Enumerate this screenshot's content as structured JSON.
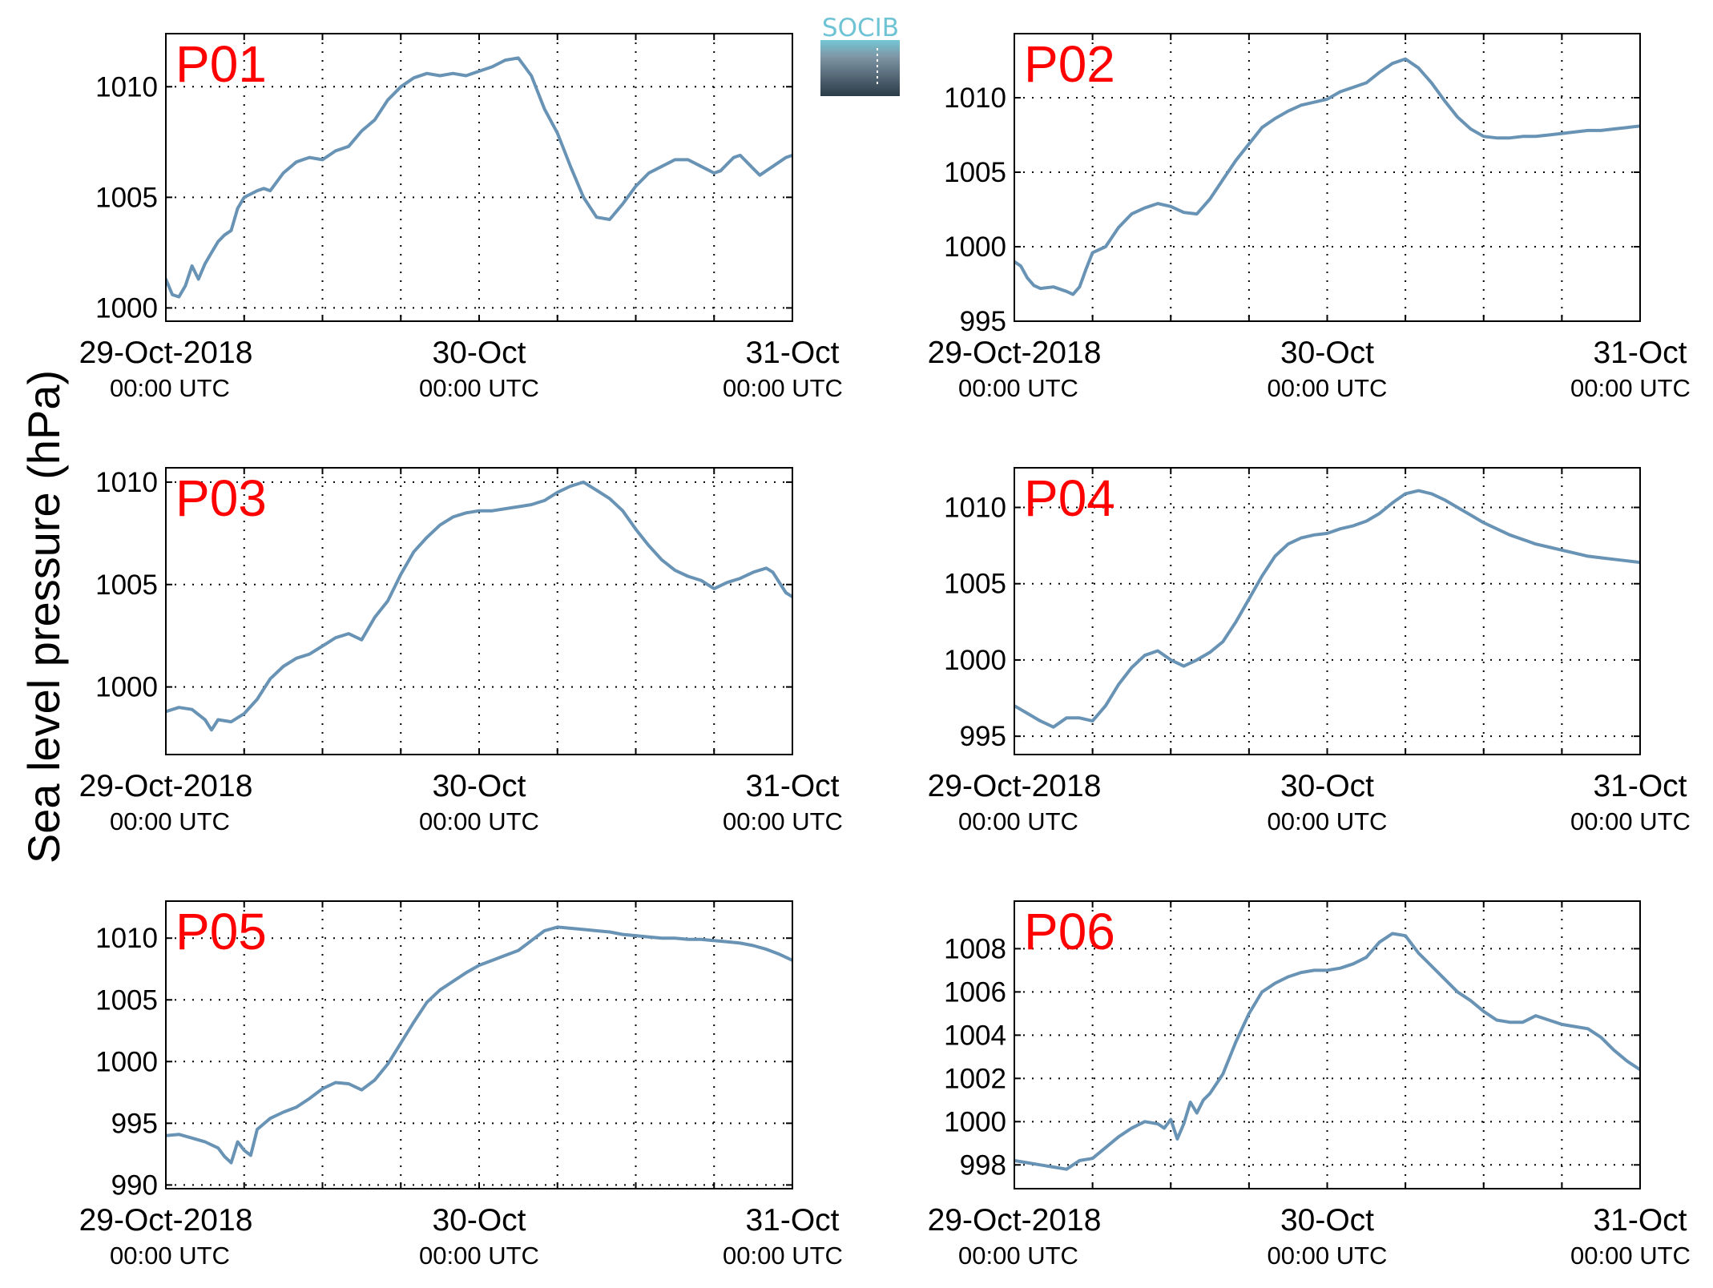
{
  "figure": {
    "ylabel": "Sea level pressure (hPa)",
    "logo_text": "SOCIB",
    "colors": {
      "line": "#6893b5",
      "panel_title": "#ff0000",
      "logo_text": "#6ec3d4",
      "logo_top": "#74c7d6",
      "logo_bottom": "#2b3b48"
    }
  },
  "chart_data": [
    {
      "type": "line",
      "title": "P01",
      "x_ticks": [
        {
          "date": "29-Oct-2018",
          "time": "00:00 UTC"
        },
        {
          "date": "30-Oct",
          "time": "00:00 UTC"
        },
        {
          "date": "31-Oct",
          "time": "00:00 UTC"
        }
      ],
      "x_grid_hours": [
        12,
        24,
        36,
        60,
        72,
        84
      ],
      "xlim_hours": [
        0,
        96
      ],
      "yticks": [
        1000,
        1005,
        1010
      ],
      "ylim": [
        999.4,
        1012.4
      ],
      "grid": true,
      "series": [
        {
          "x_hours": [
            0,
            1,
            2,
            3,
            4,
            5,
            6,
            7,
            8,
            9,
            10,
            11,
            12,
            14,
            15,
            16,
            18,
            20,
            22,
            24,
            26,
            28,
            30,
            32,
            34,
            36,
            38,
            40,
            42,
            44,
            46,
            48,
            50,
            52,
            54,
            56,
            58,
            60,
            62,
            64,
            66,
            68,
            70,
            72,
            74,
            76,
            78,
            80,
            82,
            84,
            85,
            86,
            87,
            88,
            89,
            90,
            91,
            92,
            93,
            94,
            95,
            96
          ],
          "values": [
            1001.3,
            1000.6,
            1000.5,
            1001.0,
            1001.9,
            1001.3,
            1002.0,
            1002.5,
            1003.0,
            1003.3,
            1003.5,
            1004.5,
            1005.0,
            1005.3,
            1005.4,
            1005.3,
            1006.1,
            1006.6,
            1006.8,
            1006.7,
            1007.1,
            1007.3,
            1008.0,
            1008.5,
            1009.4,
            1010.0,
            1010.4,
            1010.6,
            1010.5,
            1010.6,
            1010.5,
            1010.7,
            1010.9,
            1011.2,
            1011.3,
            1010.5,
            1009.0,
            1007.9,
            1006.4,
            1005.0,
            1004.1,
            1004.0,
            1004.7,
            1005.5,
            1006.1,
            1006.4,
            1006.7,
            1006.7,
            1006.4,
            1006.1,
            1006.2,
            1006.5,
            1006.8,
            1006.9,
            1006.6,
            1006.3,
            1006.0,
            1006.2,
            1006.4,
            1006.6,
            1006.8,
            1006.9
          ]
        }
      ]
    },
    {
      "type": "line",
      "title": "P02",
      "x_ticks": [
        {
          "date": "29-Oct-2018",
          "time": "00:00 UTC"
        },
        {
          "date": "30-Oct",
          "time": "00:00 UTC"
        },
        {
          "date": "31-Oct",
          "time": "00:00 UTC"
        }
      ],
      "x_grid_hours": [
        12,
        24,
        36,
        60,
        72,
        84
      ],
      "xlim_hours": [
        0,
        96
      ],
      "yticks": [
        995,
        1000,
        1005,
        1010
      ],
      "ylim": [
        995,
        1014.3
      ],
      "grid": true,
      "series": [
        {
          "x_hours": [
            0,
            1,
            2,
            3,
            4,
            6,
            8,
            9,
            10,
            11,
            12,
            14,
            16,
            18,
            20,
            22,
            24,
            26,
            28,
            30,
            32,
            34,
            36,
            38,
            40,
            42,
            44,
            46,
            48,
            50,
            52,
            54,
            56,
            58,
            60,
            62,
            64,
            66,
            68,
            70,
            72,
            74,
            76,
            78,
            80,
            82,
            84,
            86,
            88,
            90,
            92,
            94,
            96
          ],
          "values": [
            999.0,
            998.7,
            997.9,
            997.4,
            997.2,
            997.3,
            997.0,
            996.8,
            997.3,
            998.5,
            999.6,
            1000.0,
            1001.3,
            1002.2,
            1002.6,
            1002.9,
            1002.7,
            1002.3,
            1002.2,
            1003.2,
            1004.5,
            1005.8,
            1006.9,
            1008.0,
            1008.6,
            1009.1,
            1009.5,
            1009.7,
            1009.9,
            1010.4,
            1010.7,
            1011.0,
            1011.7,
            1012.3,
            1012.6,
            1012.0,
            1011.0,
            1009.8,
            1008.7,
            1007.9,
            1007.4,
            1007.3,
            1007.3,
            1007.4,
            1007.4,
            1007.5,
            1007.6,
            1007.7,
            1007.8,
            1007.8,
            1007.9,
            1008.0,
            1008.1
          ]
        }
      ]
    },
    {
      "type": "line",
      "title": "P03",
      "x_ticks": [
        {
          "date": "29-Oct-2018",
          "time": "00:00 UTC"
        },
        {
          "date": "30-Oct",
          "time": "00:00 UTC"
        },
        {
          "date": "31-Oct",
          "time": "00:00 UTC"
        }
      ],
      "x_grid_hours": [
        12,
        24,
        36,
        60,
        72,
        84
      ],
      "xlim_hours": [
        0,
        96
      ],
      "yticks": [
        1000,
        1005,
        1010
      ],
      "ylim": [
        996.7,
        1010.7
      ],
      "grid": true,
      "series": [
        {
          "x_hours": [
            0,
            2,
            4,
            6,
            7,
            8,
            10,
            12,
            14,
            16,
            18,
            20,
            22,
            24,
            25,
            26,
            28,
            30,
            32,
            34,
            36,
            38,
            40,
            42,
            44,
            46,
            48,
            50,
            52,
            54,
            56,
            58,
            60,
            62,
            64,
            66,
            68,
            70,
            72,
            74,
            76,
            78,
            80,
            82,
            84,
            86,
            88,
            90,
            92,
            93,
            94,
            95,
            96
          ],
          "values": [
            998.8,
            999.0,
            998.9,
            998.4,
            997.9,
            998.4,
            998.3,
            998.7,
            999.4,
            1000.4,
            1001.0,
            1001.4,
            1001.6,
            1002.0,
            1002.2,
            1002.4,
            1002.6,
            1002.3,
            1003.4,
            1004.2,
            1005.5,
            1006.6,
            1007.3,
            1007.9,
            1008.3,
            1008.5,
            1008.6,
            1008.6,
            1008.7,
            1008.8,
            1008.9,
            1009.1,
            1009.5,
            1009.8,
            1010.0,
            1009.6,
            1009.2,
            1008.6,
            1007.7,
            1006.9,
            1006.2,
            1005.7,
            1005.4,
            1005.2,
            1004.8,
            1005.1,
            1005.3,
            1005.6,
            1005.8,
            1005.6,
            1005.1,
            1004.6,
            1004.4
          ]
        }
      ]
    },
    {
      "type": "line",
      "title": "P04",
      "x_ticks": [
        {
          "date": "29-Oct-2018",
          "time": "00:00 UTC"
        },
        {
          "date": "30-Oct",
          "time": "00:00 UTC"
        },
        {
          "date": "31-Oct",
          "time": "00:00 UTC"
        }
      ],
      "x_grid_hours": [
        12,
        24,
        36,
        60,
        72,
        84
      ],
      "xlim_hours": [
        0,
        96
      ],
      "yticks": [
        995,
        1000,
        1005,
        1010
      ],
      "ylim": [
        993.8,
        1012.6
      ],
      "grid": true,
      "series": [
        {
          "x_hours": [
            0,
            2,
            4,
            6,
            8,
            10,
            12,
            14,
            16,
            18,
            20,
            22,
            24,
            26,
            28,
            30,
            32,
            34,
            36,
            38,
            40,
            42,
            44,
            46,
            48,
            50,
            52,
            54,
            56,
            58,
            60,
            62,
            64,
            66,
            68,
            70,
            72,
            74,
            76,
            78,
            80,
            82,
            84,
            86,
            88,
            90,
            92,
            94,
            96
          ],
          "values": [
            997.0,
            996.5,
            996.0,
            995.6,
            996.2,
            996.2,
            996.0,
            997.0,
            998.4,
            999.5,
            1000.3,
            1000.6,
            1000.0,
            999.6,
            1000.0,
            1000.5,
            1001.2,
            1002.5,
            1004.0,
            1005.5,
            1006.8,
            1007.6,
            1008.0,
            1008.2,
            1008.3,
            1008.6,
            1008.8,
            1009.1,
            1009.6,
            1010.3,
            1010.9,
            1011.1,
            1010.9,
            1010.5,
            1010.0,
            1009.5,
            1009.0,
            1008.6,
            1008.2,
            1007.9,
            1007.6,
            1007.4,
            1007.2,
            1007.0,
            1006.8,
            1006.7,
            1006.6,
            1006.5,
            1006.4
          ]
        }
      ]
    },
    {
      "type": "line",
      "title": "P05",
      "x_ticks": [
        {
          "date": "29-Oct-2018",
          "time": "00:00 UTC"
        },
        {
          "date": "30-Oct",
          "time": "00:00 UTC"
        },
        {
          "date": "31-Oct",
          "time": "00:00 UTC"
        }
      ],
      "x_grid_hours": [
        12,
        24,
        36,
        60,
        72,
        84
      ],
      "xlim_hours": [
        0,
        96
      ],
      "yticks": [
        990,
        995,
        1000,
        1005,
        1010
      ],
      "ylim": [
        989.7,
        1013.0
      ],
      "grid": true,
      "series": [
        {
          "x_hours": [
            0,
            2,
            4,
            6,
            8,
            9,
            10,
            11,
            12,
            13,
            14,
            16,
            18,
            20,
            22,
            24,
            26,
            28,
            30,
            32,
            34,
            36,
            38,
            40,
            42,
            44,
            46,
            48,
            50,
            52,
            54,
            56,
            58,
            60,
            62,
            64,
            66,
            68,
            70,
            72,
            74,
            76,
            78,
            80,
            82,
            84,
            86,
            88,
            90,
            92,
            94,
            96
          ],
          "values": [
            994.0,
            994.1,
            993.8,
            993.5,
            993.0,
            992.3,
            991.8,
            993.5,
            992.8,
            992.4,
            994.5,
            995.4,
            995.9,
            996.3,
            997.0,
            997.8,
            998.3,
            998.2,
            997.7,
            998.5,
            999.8,
            1001.5,
            1003.2,
            1004.8,
            1005.8,
            1006.5,
            1007.2,
            1007.8,
            1008.2,
            1008.6,
            1009.0,
            1009.8,
            1010.6,
            1010.9,
            1010.8,
            1010.7,
            1010.6,
            1010.5,
            1010.3,
            1010.2,
            1010.1,
            1010.0,
            1010.0,
            1009.9,
            1009.9,
            1009.8,
            1009.7,
            1009.6,
            1009.4,
            1009.1,
            1008.7,
            1008.2
          ]
        }
      ]
    },
    {
      "type": "line",
      "title": "P06",
      "x_ticks": [
        {
          "date": "29-Oct-2018",
          "time": "00:00 UTC"
        },
        {
          "date": "30-Oct",
          "time": "00:00 UTC"
        },
        {
          "date": "31-Oct",
          "time": "00:00 UTC"
        }
      ],
      "x_grid_hours": [
        12,
        24,
        36,
        60,
        72,
        84
      ],
      "xlim_hours": [
        0,
        96
      ],
      "yticks": [
        998,
        1000,
        1002,
        1004,
        1006,
        1008
      ],
      "ylim": [
        996.9,
        1010.2
      ],
      "grid": true,
      "series": [
        {
          "x_hours": [
            0,
            2,
            4,
            6,
            8,
            10,
            12,
            14,
            16,
            18,
            20,
            22,
            23,
            24,
            25,
            26,
            27,
            28,
            29,
            30,
            32,
            34,
            36,
            38,
            40,
            42,
            44,
            46,
            48,
            50,
            52,
            54,
            56,
            58,
            60,
            62,
            64,
            66,
            68,
            70,
            72,
            74,
            76,
            78,
            80,
            82,
            84,
            86,
            88,
            90,
            92,
            94,
            96
          ],
          "values": [
            998.2,
            998.1,
            998.0,
            997.9,
            997.8,
            998.2,
            998.3,
            998.8,
            999.3,
            999.7,
            1000.0,
            999.9,
            999.7,
            1000.1,
            999.2,
            999.9,
            1000.9,
            1000.4,
            1001.0,
            1001.3,
            1002.2,
            1003.7,
            1005.0,
            1006.0,
            1006.4,
            1006.7,
            1006.9,
            1007.0,
            1007.0,
            1007.1,
            1007.3,
            1007.6,
            1008.3,
            1008.7,
            1008.6,
            1007.8,
            1007.2,
            1006.6,
            1006.0,
            1005.6,
            1005.1,
            1004.7,
            1004.6,
            1004.6,
            1004.9,
            1004.7,
            1004.5,
            1004.4,
            1004.3,
            1003.9,
            1003.3,
            1002.8,
            1002.4
          ]
        }
      ]
    }
  ]
}
